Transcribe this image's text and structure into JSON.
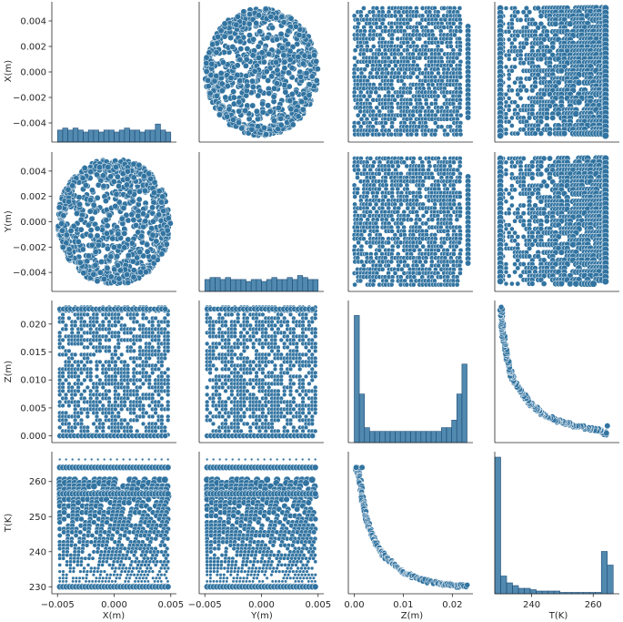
{
  "chart_data": {
    "type": "pairplot",
    "variables": [
      "X(m)",
      "Y(m)",
      "Z(m)",
      "T(K)"
    ],
    "color": "#3274a1",
    "edge_color": "#ffffff",
    "ranges": {
      "X(m)": [
        -0.0055,
        0.0055
      ],
      "Y(m)": [
        -0.0055,
        0.0055
      ],
      "Z(m)": [
        -0.0012,
        0.0242
      ],
      "T(K)": [
        228.0,
        268.5
      ]
    },
    "ticks": {
      "X(m)": {
        "values": [
          -0.004,
          -0.002,
          0.0,
          0.002,
          0.004
        ],
        "labels": [
          "−0.004",
          "−0.002",
          "0.000",
          "0.002",
          "0.004"
        ],
        "xvalues": [
          -0.005,
          0.0,
          0.005
        ],
        "xlabels": [
          "−0.005",
          "0.000",
          "0.005"
        ]
      },
      "Y(m)": {
        "values": [
          -0.004,
          -0.002,
          0.0,
          0.002,
          0.004
        ],
        "labels": [
          "−0.004",
          "−0.002",
          "0.000",
          "0.002",
          "0.004"
        ],
        "xvalues": [
          -0.005,
          0.0,
          0.005
        ],
        "xlabels": [
          "−0.005",
          "0.000",
          "0.005"
        ]
      },
      "Z(m)": {
        "values": [
          0.0,
          0.005,
          0.01,
          0.015,
          0.02
        ],
        "labels": [
          "0.000",
          "0.005",
          "0.010",
          "0.015",
          "0.020"
        ],
        "xvalues": [
          0.0,
          0.01,
          0.02
        ],
        "xlabels": [
          "0.00",
          "0.01",
          "0.02"
        ]
      },
      "T(K)": {
        "values": [
          230,
          240,
          250,
          260
        ],
        "labels": [
          "230",
          "240",
          "250",
          "260"
        ],
        "xvalues": [
          240,
          260
        ],
        "xlabels": [
          "240",
          "260"
        ]
      }
    },
    "histograms": {
      "X(m)": {
        "range": [
          -0.005,
          0.005
        ],
        "counts": [
          6,
          7,
          6,
          7,
          6,
          5,
          6,
          6,
          5,
          6,
          6,
          5,
          6,
          7,
          6,
          6,
          5,
          6,
          6,
          9,
          6,
          5
        ],
        "ymax": 70
      },
      "Y(m)": {
        "range": [
          -0.005,
          0.005
        ],
        "counts": [
          6,
          7,
          7,
          6,
          7,
          6,
          6,
          6,
          5,
          6,
          6,
          5,
          6,
          7,
          6,
          6,
          7,
          6,
          8,
          7,
          6,
          6
        ],
        "ymax": 70
      },
      "Z(m)": {
        "range": [
          0.0,
          0.023
        ],
        "counts": [
          34,
          13,
          4,
          3,
          3,
          3,
          3,
          3,
          3,
          3,
          3,
          3,
          3,
          3,
          3,
          3,
          3,
          4,
          4,
          6,
          13,
          21
        ],
        "ymax": 38
      },
      "T(K)": {
        "range": [
          228.0,
          266.5
        ],
        "counts": [
          100,
          13,
          8,
          6,
          4,
          4,
          3,
          2,
          2,
          2,
          2,
          1,
          1,
          1,
          1,
          1,
          1,
          1,
          31,
          21
        ],
        "ymax": 104
      }
    },
    "scatter_panels": [
      {
        "x": "Y(m)",
        "y": "X(m)",
        "pattern": "disk"
      },
      {
        "x": "Z(m)",
        "y": "X(m)",
        "pattern": "grid-z"
      },
      {
        "x": "T(K)",
        "y": "X(m)",
        "pattern": "grid-t"
      },
      {
        "x": "X(m)",
        "y": "Y(m)",
        "pattern": "disk"
      },
      {
        "x": "Z(m)",
        "y": "Y(m)",
        "pattern": "grid-z"
      },
      {
        "x": "T(K)",
        "y": "Y(m)",
        "pattern": "grid-t"
      },
      {
        "x": "X(m)",
        "y": "Z(m)",
        "pattern": "columns"
      },
      {
        "x": "Y(m)",
        "y": "Z(m)",
        "pattern": "columns"
      },
      {
        "x": "T(K)",
        "y": "Z(m)",
        "pattern": "decay"
      },
      {
        "x": "X(m)",
        "y": "T(K)",
        "pattern": "bands"
      },
      {
        "x": "Y(m)",
        "y": "T(K)",
        "pattern": "bands"
      },
      {
        "x": "Z(m)",
        "y": "T(K)",
        "pattern": "decay"
      }
    ],
    "curve_T_vs_Z": [
      [
        0.0003,
        264.0
      ],
      [
        0.001,
        262.0
      ],
      [
        0.0015,
        257.0
      ],
      [
        0.002,
        252.5
      ],
      [
        0.0025,
        249.5
      ],
      [
        0.003,
        247.0
      ],
      [
        0.004,
        243.5
      ],
      [
        0.005,
        241.0
      ],
      [
        0.006,
        239.0
      ],
      [
        0.008,
        236.5
      ],
      [
        0.01,
        234.0
      ],
      [
        0.012,
        232.8
      ],
      [
        0.015,
        231.6
      ],
      [
        0.018,
        230.8
      ],
      [
        0.02,
        230.4
      ],
      [
        0.023,
        230.0
      ]
    ]
  }
}
